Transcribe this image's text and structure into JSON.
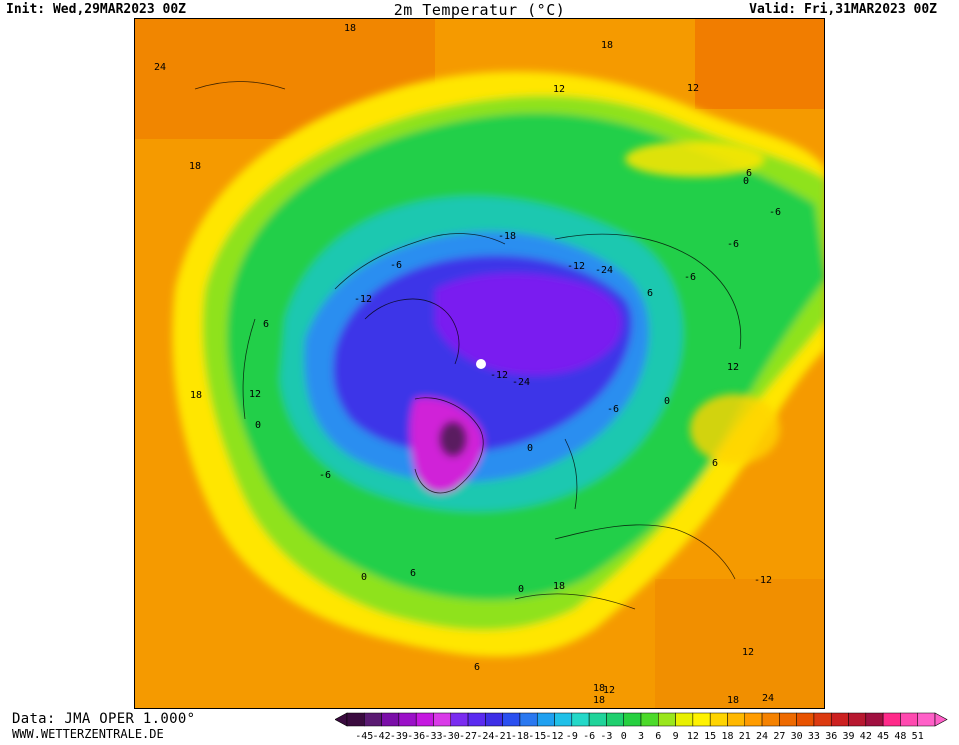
{
  "header": {
    "init": "Init: Wed,29MAR2023 00Z",
    "title": "2m Temperatur (°C)",
    "valid": "Valid: Fri,31MAR2023 00Z"
  },
  "footer": {
    "data_source": "Data: JMA OPER 1.000°",
    "website": "WWW.WETTERZENTRALE.DE"
  },
  "legend": {
    "ticks": [
      "-45",
      "-42",
      "-39",
      "-36",
      "-33",
      "-30",
      "-27",
      "-24",
      "-21",
      "-18",
      "-15",
      "-12",
      "-9",
      "-6",
      "-3",
      "0",
      "3",
      "6",
      "9",
      "12",
      "15",
      "18",
      "21",
      "24",
      "27",
      "30",
      "33",
      "36",
      "39",
      "42",
      "45",
      "48",
      "51"
    ],
    "colors": [
      "#3a0b3f",
      "#5a1a72",
      "#7a0ea8",
      "#9b10c8",
      "#c518e0",
      "#d93ae8",
      "#7a2cf0",
      "#5a2af0",
      "#3d2ee6",
      "#2a4ff0",
      "#2a78f0",
      "#1fa0f0",
      "#20c0e8",
      "#24d8c8",
      "#20d49a",
      "#1fcf6e",
      "#26d040",
      "#4cda2a",
      "#9ae61c",
      "#e8f000",
      "#fff200",
      "#ffd400",
      "#ffb800",
      "#ff9c00",
      "#f58200",
      "#ee6a00",
      "#e85200",
      "#dc3a10",
      "#cc2020",
      "#b81830",
      "#a01040",
      "#ff2a8a",
      "#ff4ab0",
      "#ff60c8"
    ]
  },
  "map": {
    "contour_labels": [
      "18",
      "18",
      "24",
      "12",
      "18",
      "12",
      "6",
      "0",
      "-6",
      "12",
      "-6",
      "6",
      "-6",
      "-12",
      "-18",
      "-24",
      "-12",
      "6",
      "-6",
      "-12",
      "0",
      "-6",
      "-24",
      "12",
      "-6",
      "0",
      "6",
      "0",
      "18",
      "6",
      "0",
      "-12",
      "18",
      "0",
      "6",
      "18",
      "12",
      "12",
      "18",
      "18",
      "24"
    ],
    "pole_marker": "north-pole"
  }
}
